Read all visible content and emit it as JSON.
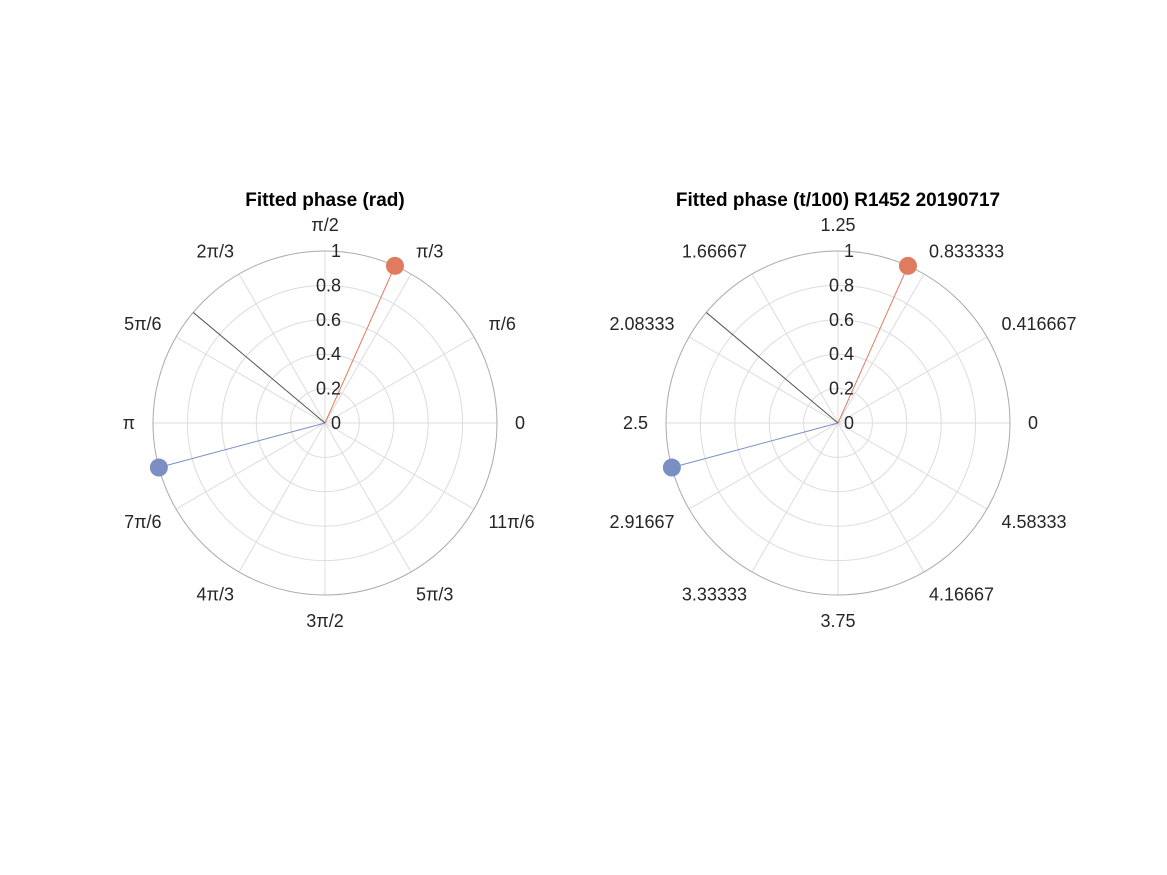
{
  "chart_data": [
    {
      "type": "polar",
      "title": "Fitted phase (rad)",
      "theta_tick_labels": [
        "0",
        "π/6",
        "π/3",
        "π/2",
        "2π/3",
        "5π/6",
        "π",
        "7π/6",
        "4π/3",
        "3π/2",
        "5π/3",
        "11π/6"
      ],
      "r_tick_labels": [
        "0",
        "0.2",
        "0.4",
        "0.6",
        "0.8",
        "1"
      ],
      "rlim": [
        0,
        1
      ],
      "grid": true,
      "series": [
        {
          "color": "#E07B5F",
          "theta_deg": 66,
          "r": 1.0,
          "marker": true
        },
        {
          "color": "#7B8FC4",
          "theta_deg": 195,
          "r": 1.0,
          "marker": true
        },
        {
          "color": "#555555",
          "theta_deg": 140,
          "r": 1.0,
          "marker": false
        }
      ]
    },
    {
      "type": "polar",
      "title": "Fitted phase (t/100) R1452 20190717",
      "theta_tick_labels": [
        "0",
        "0.416667",
        "0.833333",
        "1.25",
        "1.66667",
        "2.08333",
        "2.5",
        "2.91667",
        "3.33333",
        "3.75",
        "4.16667",
        "4.58333"
      ],
      "r_tick_labels": [
        "0",
        "0.2",
        "0.4",
        "0.6",
        "0.8",
        "1"
      ],
      "rlim": [
        0,
        1
      ],
      "grid": true,
      "series": [
        {
          "color": "#E07B5F",
          "theta_deg": 66,
          "r": 1.0,
          "marker": true
        },
        {
          "color": "#7B8FC4",
          "theta_deg": 195,
          "r": 1.0,
          "marker": true
        },
        {
          "color": "#555555",
          "theta_deg": 140,
          "r": 1.0,
          "marker": false
        }
      ]
    }
  ]
}
